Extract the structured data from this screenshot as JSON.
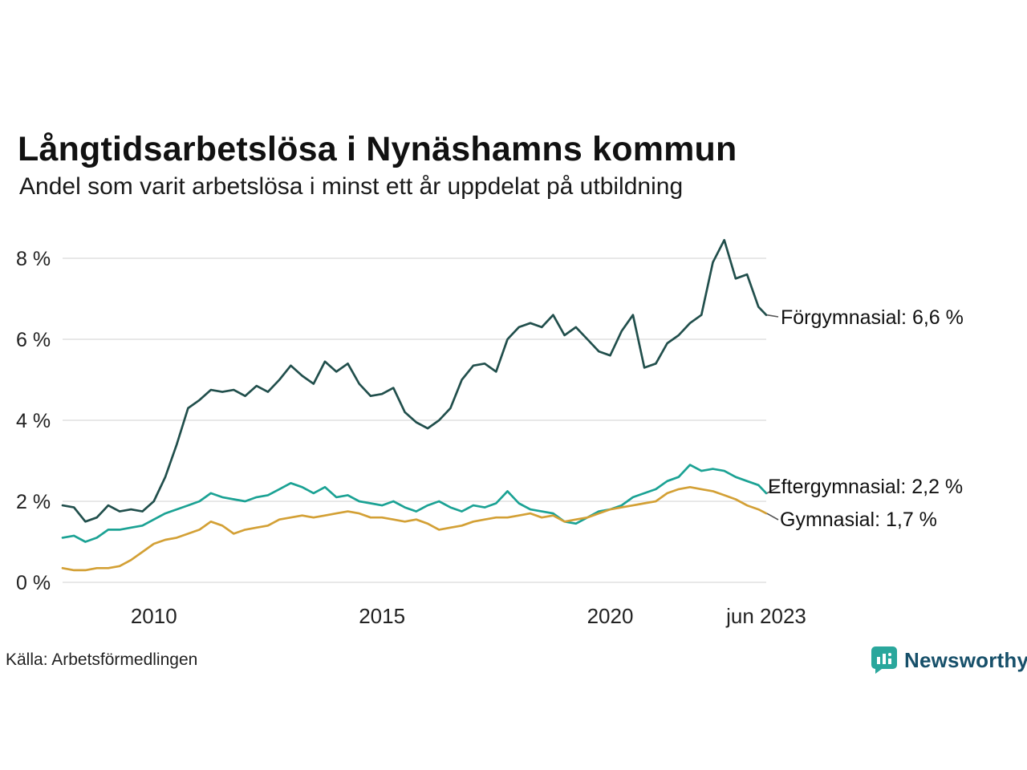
{
  "header": {
    "title": "Långtidsarbetslösa i Nynäshamns kommun",
    "subtitle": "Andel som varit arbetslösa i minst ett år uppdelat på utbildning"
  },
  "footer": {
    "source": "Källa: Arbetsförmedlingen",
    "brand_name": "Newsworthy",
    "brand_color": "#2aa79c"
  },
  "chart_data": {
    "type": "line",
    "title": "Långtidsarbetslösa i Nynäshamns kommun",
    "subtitle": "Andel som varit arbetslösa i minst ett år uppdelat på utbildning",
    "xlabel": "",
    "ylabel": "",
    "xlim": [
      2008,
      2023.42
    ],
    "ylim": [
      0,
      8.6
    ],
    "grid": "horizontal",
    "legend_position": "right-annotations",
    "grid_color": "#d9d9d9",
    "axis_text_color": "#222222",
    "x": [
      2008,
      2008.25,
      2008.5,
      2008.75,
      2009,
      2009.25,
      2009.5,
      2009.75,
      2010,
      2010.25,
      2010.5,
      2010.75,
      2011,
      2011.25,
      2011.5,
      2011.75,
      2012,
      2012.25,
      2012.5,
      2012.75,
      2013,
      2013.25,
      2013.5,
      2013.75,
      2014,
      2014.25,
      2014.5,
      2014.75,
      2015,
      2015.25,
      2015.5,
      2015.75,
      2016,
      2016.25,
      2016.5,
      2016.75,
      2017,
      2017.25,
      2017.5,
      2017.75,
      2018,
      2018.25,
      2018.5,
      2018.75,
      2019,
      2019.25,
      2019.5,
      2019.75,
      2020,
      2020.25,
      2020.5,
      2020.75,
      2021,
      2021.25,
      2021.5,
      2021.75,
      2022,
      2022.25,
      2022.5,
      2022.75,
      2023,
      2023.25,
      2023.42
    ],
    "x_ticks": [
      {
        "value": 2010,
        "label": "2010"
      },
      {
        "value": 2015,
        "label": "2015"
      },
      {
        "value": 2020,
        "label": "2020"
      },
      {
        "value": 2023.42,
        "label": "jun 2023"
      }
    ],
    "y_ticks": [
      {
        "value": 0,
        "label": "0 %"
      },
      {
        "value": 2,
        "label": "2 %"
      },
      {
        "value": 4,
        "label": "4 %"
      },
      {
        "value": 6,
        "label": "6 %"
      },
      {
        "value": 8,
        "label": "8 %"
      }
    ],
    "series": [
      {
        "name": "Forgymnasial",
        "label": "Förgymnasial: 6,6 %",
        "last_value": "6,6 %",
        "color": "#214f4c",
        "values": [
          1.9,
          1.85,
          1.5,
          1.6,
          1.9,
          1.75,
          1.8,
          1.75,
          2.0,
          2.6,
          3.4,
          4.3,
          4.5,
          4.75,
          4.7,
          4.75,
          4.6,
          4.85,
          4.7,
          5.0,
          5.35,
          5.1,
          4.9,
          5.45,
          5.2,
          5.4,
          4.9,
          4.6,
          4.65,
          4.8,
          4.2,
          3.95,
          3.8,
          4.0,
          4.3,
          5.0,
          5.35,
          5.4,
          5.2,
          6.0,
          6.3,
          6.4,
          6.3,
          6.6,
          6.1,
          6.3,
          6.0,
          5.7,
          5.6,
          6.2,
          6.6,
          5.3,
          5.4,
          5.9,
          6.1,
          6.4,
          6.6,
          7.9,
          8.45,
          7.5,
          7.6,
          6.8,
          6.6
        ]
      },
      {
        "name": "Eftergymnasial",
        "label": "Eftergymnasial: 2,2 %",
        "last_value": "2,2 %",
        "color": "#1ba294",
        "values": [
          1.1,
          1.15,
          1.0,
          1.1,
          1.3,
          1.3,
          1.35,
          1.4,
          1.55,
          1.7,
          1.8,
          1.9,
          2.0,
          2.2,
          2.1,
          2.05,
          2.0,
          2.1,
          2.15,
          2.3,
          2.45,
          2.35,
          2.2,
          2.35,
          2.1,
          2.15,
          2.0,
          1.95,
          1.9,
          2.0,
          1.85,
          1.75,
          1.9,
          2.0,
          1.85,
          1.75,
          1.9,
          1.85,
          1.95,
          2.25,
          1.95,
          1.8,
          1.75,
          1.7,
          1.5,
          1.45,
          1.6,
          1.75,
          1.8,
          1.9,
          2.1,
          2.2,
          2.3,
          2.5,
          2.6,
          2.9,
          2.75,
          2.8,
          2.75,
          2.6,
          2.5,
          2.4,
          2.2
        ]
      },
      {
        "name": "Gymnasial",
        "label": "Gymnasial: 1,7 %",
        "last_value": "1,7 %",
        "color": "#d3a035",
        "values": [
          0.35,
          0.3,
          0.3,
          0.35,
          0.35,
          0.4,
          0.55,
          0.75,
          0.95,
          1.05,
          1.1,
          1.2,
          1.3,
          1.5,
          1.4,
          1.2,
          1.3,
          1.35,
          1.4,
          1.55,
          1.6,
          1.65,
          1.6,
          1.65,
          1.7,
          1.75,
          1.7,
          1.6,
          1.6,
          1.55,
          1.5,
          1.55,
          1.45,
          1.3,
          1.35,
          1.4,
          1.5,
          1.55,
          1.6,
          1.6,
          1.65,
          1.7,
          1.6,
          1.65,
          1.5,
          1.55,
          1.6,
          1.7,
          1.8,
          1.85,
          1.9,
          1.95,
          2.0,
          2.2,
          2.3,
          2.35,
          2.3,
          2.25,
          2.15,
          2.05,
          1.9,
          1.8,
          1.7
        ]
      }
    ]
  }
}
